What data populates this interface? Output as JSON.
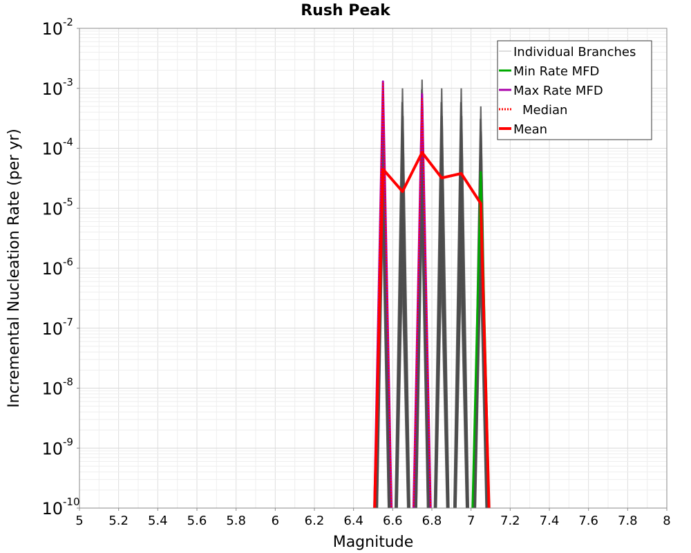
{
  "chart_data": {
    "type": "line",
    "title": "Rush Peak",
    "xlabel": "Magnitude",
    "ylabel": "Incremental Nucleation Rate (per yr)",
    "xlim": [
      5,
      8
    ],
    "ylim": [
      1e-10,
      0.01
    ],
    "yscale": "log",
    "grid": true,
    "legend_position": "top-right",
    "x_ticks": [
      "5",
      "5.2",
      "5.4",
      "5.6",
      "5.8",
      "6",
      "6.2",
      "6.4",
      "6.6",
      "6.8",
      "7",
      "7.2",
      "7.4",
      "7.6",
      "7.8",
      "8"
    ],
    "y_ticks": [
      {
        "base": "10",
        "exp": "-10",
        "value": 1e-10
      },
      {
        "base": "10",
        "exp": "-9",
        "value": 1e-09
      },
      {
        "base": "10",
        "exp": "-8",
        "value": 1e-08
      },
      {
        "base": "10",
        "exp": "-7",
        "value": 1e-07
      },
      {
        "base": "10",
        "exp": "-6",
        "value": 1e-06
      },
      {
        "base": "10",
        "exp": "-5",
        "value": 1e-05
      },
      {
        "base": "10",
        "exp": "-4",
        "value": 0.0001
      },
      {
        "base": "10",
        "exp": "-3",
        "value": 0.001
      },
      {
        "base": "10",
        "exp": "-2",
        "value": 0.01
      }
    ],
    "series": [
      {
        "name": "Individual Branches",
        "color": "#4d4d4d",
        "style": "band",
        "peaks": [
          {
            "x": 6.55,
            "min": 1e-05,
            "max": 0.0013
          },
          {
            "x": 6.65,
            "min": 1e-06,
            "max": 0.001
          },
          {
            "x": 6.75,
            "min": 1e-05,
            "max": 0.0014
          },
          {
            "x": 6.85,
            "min": 1e-06,
            "max": 0.001
          },
          {
            "x": 6.95,
            "min": 1e-06,
            "max": 0.001
          },
          {
            "x": 7.05,
            "min": 1e-06,
            "max": 0.0005
          }
        ],
        "troughs": [
          6.6,
          6.7,
          6.8,
          6.9,
          7.0
        ]
      },
      {
        "name": "Min Rate MFD",
        "color": "#00aa00",
        "x": [
          7.0,
          7.05,
          7.1
        ],
        "y": [
          1e-10,
          4e-05,
          1e-10
        ]
      },
      {
        "name": "Max Rate MFD",
        "color": "#aa00aa",
        "x": [
          6.5,
          6.55,
          6.6,
          6.7,
          6.75,
          6.8
        ],
        "y": [
          1e-10,
          0.0013,
          1e-10,
          1e-10,
          0.0008,
          1e-10
        ]
      },
      {
        "name": "Median",
        "color": "#ff0000",
        "style": "dotted",
        "x": [
          6.5,
          6.55,
          6.6,
          6.7,
          6.75,
          6.8
        ],
        "y": [
          1e-10,
          0.0012,
          1e-10,
          1e-10,
          0.0007,
          1e-10
        ]
      },
      {
        "name": "Mean",
        "color": "#ff0000",
        "x": [
          6.5,
          6.55,
          6.65,
          6.75,
          6.85,
          6.95,
          7.05,
          7.1
        ],
        "y": [
          1e-10,
          4.5e-05,
          1.9e-05,
          8.5e-05,
          3.2e-05,
          3.8e-05,
          1.2e-05,
          1e-10
        ]
      }
    ]
  },
  "legend": {
    "items": [
      {
        "label": "Individual Branches",
        "color": "#bbbbbb",
        "style": "thin"
      },
      {
        "label": "Min Rate MFD",
        "color": "#00aa00",
        "style": "solid"
      },
      {
        "label": "Max Rate MFD",
        "color": "#aa00aa",
        "style": "solid"
      },
      {
        "label": "Median",
        "color": "#ff0000",
        "style": "dotted"
      },
      {
        "label": "Mean",
        "color": "#ff0000",
        "style": "thick"
      }
    ]
  }
}
